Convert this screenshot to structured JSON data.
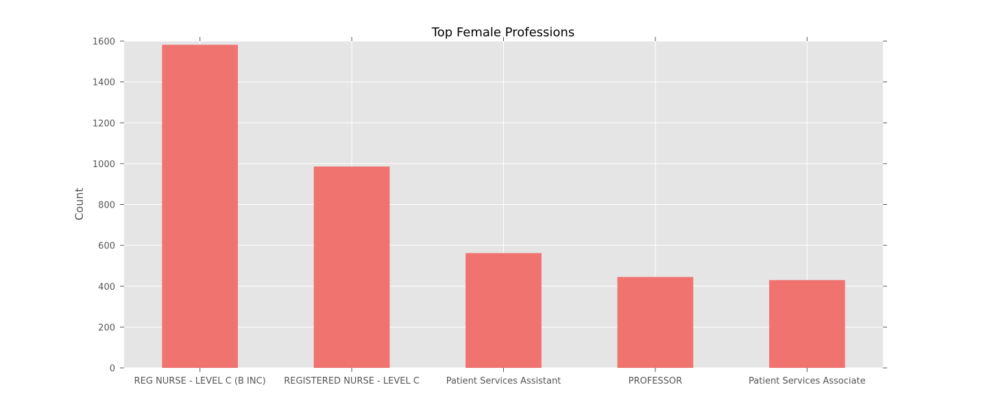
{
  "chart_data": {
    "type": "bar",
    "title": "Top Female Professions",
    "xlabel": "",
    "ylabel": "Count",
    "categories": [
      "REG NURSE - LEVEL C (B INC)",
      "REGISTERED NURSE - LEVEL C",
      "Patient Services Assistant",
      "PROFESSOR",
      "Patient Services Associate"
    ],
    "values": [
      1582,
      986,
      562,
      445,
      430
    ],
    "ylim": [
      0,
      1600
    ],
    "yticks": [
      0,
      200,
      400,
      600,
      800,
      1000,
      1200,
      1400,
      1600
    ],
    "grid": true,
    "colors": {
      "bar": "#f07370",
      "plot_background": "#e5e5e5",
      "grid": "#ffffff",
      "tick_text": "#555555"
    }
  }
}
